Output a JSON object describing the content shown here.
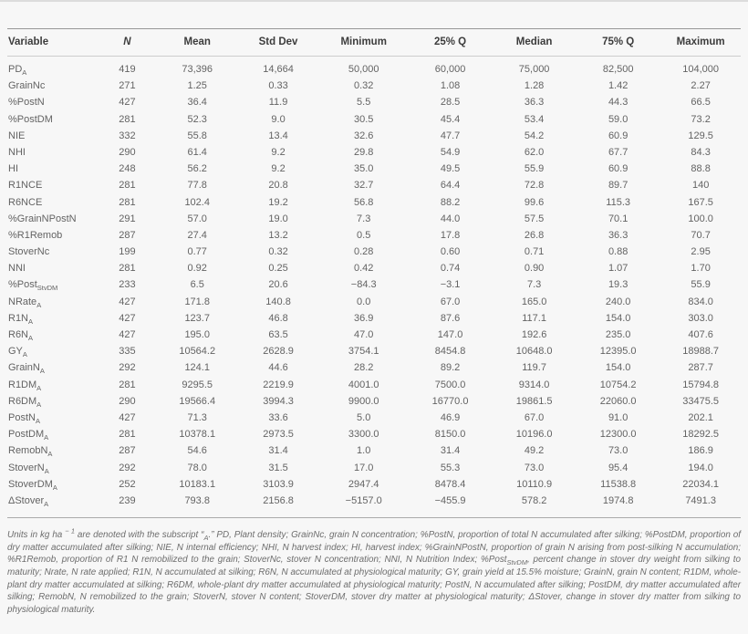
{
  "table": {
    "columns": [
      "Variable",
      "N",
      "Mean",
      "Std Dev",
      "Minimum",
      "25% Q",
      "Median",
      "75% Q",
      "Maximum"
    ],
    "rows": [
      {
        "variable": {
          "base": "PD",
          "sub": "A"
        },
        "values": [
          "419",
          "73,396",
          "14,664",
          "50,000",
          "60,000",
          "75,000",
          "82,500",
          "104,000"
        ]
      },
      {
        "variable": {
          "base": "GrainNc",
          "sub": ""
        },
        "values": [
          "271",
          "1.25",
          "0.33",
          "0.32",
          "1.08",
          "1.28",
          "1.42",
          "2.27"
        ]
      },
      {
        "variable": {
          "base": "%PostN",
          "sub": ""
        },
        "values": [
          "427",
          "36.4",
          "11.9",
          "5.5",
          "28.5",
          "36.3",
          "44.3",
          "66.5"
        ]
      },
      {
        "variable": {
          "base": "%PostDM",
          "sub": ""
        },
        "values": [
          "281",
          "52.3",
          "9.0",
          "30.5",
          "45.4",
          "53.4",
          "59.0",
          "73.2"
        ]
      },
      {
        "variable": {
          "base": "NIE",
          "sub": ""
        },
        "values": [
          "332",
          "55.8",
          "13.4",
          "32.6",
          "47.7",
          "54.2",
          "60.9",
          "129.5"
        ]
      },
      {
        "variable": {
          "base": "NHI",
          "sub": ""
        },
        "values": [
          "290",
          "61.4",
          "9.2",
          "29.8",
          "54.9",
          "62.0",
          "67.7",
          "84.3"
        ]
      },
      {
        "variable": {
          "base": "HI",
          "sub": ""
        },
        "values": [
          "248",
          "56.2",
          "9.2",
          "35.0",
          "49.5",
          "55.9",
          "60.9",
          "88.8"
        ]
      },
      {
        "variable": {
          "base": "R1NCE",
          "sub": ""
        },
        "values": [
          "281",
          "77.8",
          "20.8",
          "32.7",
          "64.4",
          "72.8",
          "89.7",
          "140"
        ]
      },
      {
        "variable": {
          "base": "R6NCE",
          "sub": ""
        },
        "values": [
          "281",
          "102.4",
          "19.2",
          "56.8",
          "88.2",
          "99.6",
          "115.3",
          "167.5"
        ]
      },
      {
        "variable": {
          "base": "%GrainNPostN",
          "sub": ""
        },
        "values": [
          "291",
          "57.0",
          "19.0",
          "7.3",
          "44.0",
          "57.5",
          "70.1",
          "100.0"
        ]
      },
      {
        "variable": {
          "base": "%R1Remob",
          "sub": ""
        },
        "values": [
          "287",
          "27.4",
          "13.2",
          "0.5",
          "17.8",
          "26.8",
          "36.3",
          "70.7"
        ]
      },
      {
        "variable": {
          "base": "StoverNc",
          "sub": ""
        },
        "values": [
          "199",
          "0.77",
          "0.32",
          "0.28",
          "0.60",
          "0.71",
          "0.88",
          "2.95"
        ]
      },
      {
        "variable": {
          "base": "NNI",
          "sub": ""
        },
        "values": [
          "281",
          "0.92",
          "0.25",
          "0.42",
          "0.74",
          "0.90",
          "1.07",
          "1.70"
        ]
      },
      {
        "variable": {
          "base": "%Post",
          "sub": "StvDM"
        },
        "values": [
          "233",
          "6.5",
          "20.6",
          "−84.3",
          "−3.1",
          "7.3",
          "19.3",
          "55.9"
        ]
      },
      {
        "variable": {
          "base": "NRate",
          "sub": "A"
        },
        "values": [
          "427",
          "171.8",
          "140.8",
          "0.0",
          "67.0",
          "165.0",
          "240.0",
          "834.0"
        ]
      },
      {
        "variable": {
          "base": "R1N",
          "sub": "A"
        },
        "values": [
          "427",
          "123.7",
          "46.8",
          "36.9",
          "87.6",
          "117.1",
          "154.0",
          "303.0"
        ]
      },
      {
        "variable": {
          "base": "R6N",
          "sub": "A"
        },
        "values": [
          "427",
          "195.0",
          "63.5",
          "47.0",
          "147.0",
          "192.6",
          "235.0",
          "407.6"
        ]
      },
      {
        "variable": {
          "base": "GY",
          "sub": "A"
        },
        "values": [
          "335",
          "10564.2",
          "2628.9",
          "3754.1",
          "8454.8",
          "10648.0",
          "12395.0",
          "18988.7"
        ]
      },
      {
        "variable": {
          "base": "GrainN",
          "sub": "A"
        },
        "values": [
          "292",
          "124.1",
          "44.6",
          "28.2",
          "89.2",
          "119.7",
          "154.0",
          "287.7"
        ]
      },
      {
        "variable": {
          "base": "R1DM",
          "sub": "A"
        },
        "values": [
          "281",
          "9295.5",
          "2219.9",
          "4001.0",
          "7500.0",
          "9314.0",
          "10754.2",
          "15794.8"
        ]
      },
      {
        "variable": {
          "base": "R6DM",
          "sub": "A"
        },
        "values": [
          "290",
          "19566.4",
          "3994.3",
          "9900.0",
          "16770.0",
          "19861.5",
          "22060.0",
          "33475.5"
        ]
      },
      {
        "variable": {
          "base": "PostN",
          "sub": "A"
        },
        "values": [
          "427",
          "71.3",
          "33.6",
          "5.0",
          "46.9",
          "67.0",
          "91.0",
          "202.1"
        ]
      },
      {
        "variable": {
          "base": "PostDM",
          "sub": "A"
        },
        "values": [
          "281",
          "10378.1",
          "2973.5",
          "3300.0",
          "8150.0",
          "10196.0",
          "12300.0",
          "18292.5"
        ]
      },
      {
        "variable": {
          "base": "RemobN",
          "sub": "A"
        },
        "values": [
          "287",
          "54.6",
          "31.4",
          "1.0",
          "31.4",
          "49.2",
          "73.0",
          "186.9"
        ]
      },
      {
        "variable": {
          "base": "StoverN",
          "sub": "A"
        },
        "values": [
          "292",
          "78.0",
          "31.5",
          "17.0",
          "55.3",
          "73.0",
          "95.4",
          "194.0"
        ]
      },
      {
        "variable": {
          "base": "StoverDM",
          "sub": "A"
        },
        "values": [
          "252",
          "10183.1",
          "3103.9",
          "2947.4",
          "8478.4",
          "10110.9",
          "11538.8",
          "22034.1"
        ]
      },
      {
        "variable": {
          "base": "ΔStover",
          "sub": "A"
        },
        "values": [
          "239",
          "793.8",
          "2156.8",
          "−5157.0",
          "−455.9",
          "578.2",
          "1974.8",
          "7491.3"
        ]
      }
    ]
  },
  "footnote": {
    "text": "Units in kg ha ^(− 1) are denoted with the subscript “~(A).” PD, Plant density; GrainNc, grain N concentration; %PostN, proportion of total N accumulated after silking; %PostDM, proportion of dry matter accumulated after silking; NIE, N internal efficiency; NHI, N harvest index; HI, harvest index; %GrainNPostN, proportion of grain N arising from post-silking N accumulation; %R1Remob, proportion of R1 N remobilized to the grain; StoverNc, stover N concentration; NNI, N Nutrition Index; %Post~(StvDM), percent change in stover dry weight from silking to maturity; Nrate, N rate applied; R1N, N accumulated at silking; R6N, N accumulated at physiological maturity; GY, grain yield at 15.5% moisture; GrainN, grain N content; R1DM, whole-plant dry matter accumulated at silking; R6DM, whole-plant dry matter accumulated at physiological maturity; PostN, N accumulated after silking; PostDM, dry matter accumulated after silking; RemobN, N remobilized to the grain; StoverN, stover N content; StoverDM, stover dry matter at physiological maturity; ΔStover, change in stover dry matter from silking to physiological maturity."
  }
}
